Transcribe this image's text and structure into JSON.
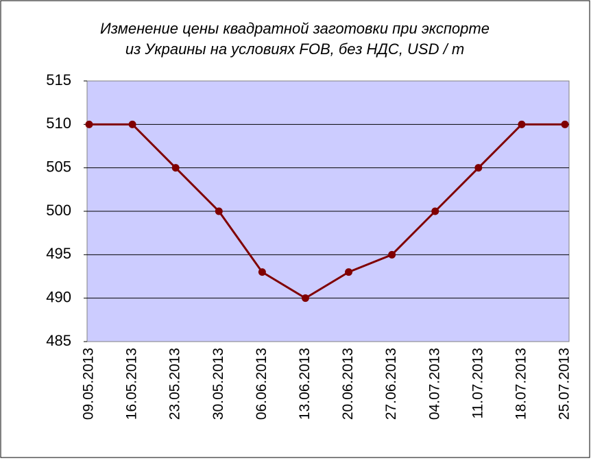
{
  "chart_data": {
    "type": "line",
    "title": [
      "Изменение цены квадратной заготовки при экспорте",
      "из Украины на условиях FOB, без НДС, USD / т"
    ],
    "categories": [
      "09.05.2013",
      "16.05.2013",
      "23.05.2013",
      "30.05.2013",
      "06.06.2013",
      "13.06.2013",
      "20.06.2013",
      "27.06.2013",
      "04.07.2013",
      "11.07.2013",
      "18.07.2013",
      "25.07.2013"
    ],
    "values": [
      510,
      510,
      505,
      500,
      493,
      490,
      493,
      495,
      500,
      505,
      510,
      510
    ],
    "color": "#800000",
    "ylim": [
      485,
      515
    ],
    "yticks": [
      485,
      490,
      495,
      500,
      505,
      510,
      515
    ],
    "grid": true
  }
}
